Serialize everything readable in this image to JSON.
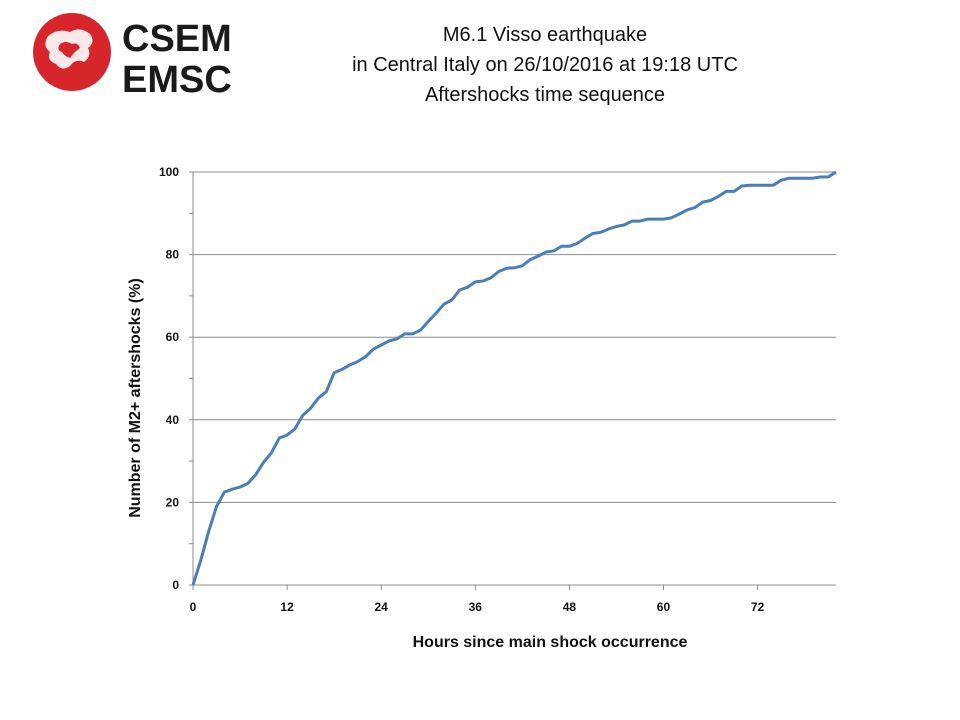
{
  "logo": {
    "line1": "CSEM",
    "line2": "EMSC",
    "color": "#d7262b"
  },
  "title": {
    "line1": "M6.1 Visso earthquake",
    "line2": "in Central Italy on 26/10/2016  at 19:18 UTC",
    "line3": "Aftershocks time sequence"
  },
  "chart_data": {
    "type": "line",
    "xlabel": "Hours since main shock occurrence",
    "ylabel": "Number of M2+ aftershocks  (%)",
    "xlim": [
      0,
      82
    ],
    "ylim": [
      0,
      100
    ],
    "xticks": [
      0,
      12,
      24,
      36,
      48,
      60,
      72
    ],
    "yticks": [
      0,
      20,
      40,
      60,
      80,
      100
    ],
    "grid": "horizontal",
    "line_color": "#4a7ebb",
    "series": [
      {
        "x": [
          0,
          1,
          2,
          3,
          4,
          5,
          6,
          7,
          8,
          9,
          10,
          11,
          12,
          13,
          14,
          15,
          16,
          17,
          18,
          19,
          20,
          21,
          22,
          23,
          24,
          25,
          26,
          27,
          28,
          29,
          30,
          31,
          32,
          33,
          34,
          35,
          36,
          37,
          38,
          39,
          40,
          41,
          42,
          43,
          44,
          45,
          46,
          47,
          48,
          49,
          50,
          51,
          52,
          53,
          54,
          55,
          56,
          57,
          58,
          59,
          60,
          61,
          62,
          63,
          64,
          65,
          66,
          67,
          68,
          69,
          70,
          71,
          72,
          73,
          74,
          75,
          76,
          77,
          78,
          79,
          80,
          81,
          82
        ],
        "y": [
          0,
          6,
          13,
          19,
          22.5,
          23.2,
          23.7,
          24.6,
          26.7,
          29.7,
          32,
          35.6,
          36.3,
          37.8,
          41.1,
          42.8,
          45.3,
          46.8,
          51.4,
          52.2,
          53.3,
          54.1,
          55.3,
          57.1,
          58.1,
          59.1,
          59.6,
          60.8,
          60.8,
          61.7,
          63.8,
          65.8,
          68,
          69,
          71.4,
          72.1,
          73.4,
          73.6,
          74.4,
          75.9,
          76.7,
          76.8,
          77.3,
          78.8,
          79.6,
          80.6,
          80.9,
          82,
          82,
          82.7,
          84,
          85.1,
          85.4,
          86.2,
          86.8,
          87.2,
          88.1,
          88.1,
          88.6,
          88.6,
          88.6,
          88.9,
          89.8,
          90.8,
          91.4,
          92.7,
          93.1,
          94.1,
          95.3,
          95.3,
          96.6,
          96.8,
          96.8,
          96.8,
          96.8,
          98,
          98.5,
          98.5,
          98.5,
          98.5,
          98.8,
          98.8,
          100
        ]
      }
    ]
  }
}
